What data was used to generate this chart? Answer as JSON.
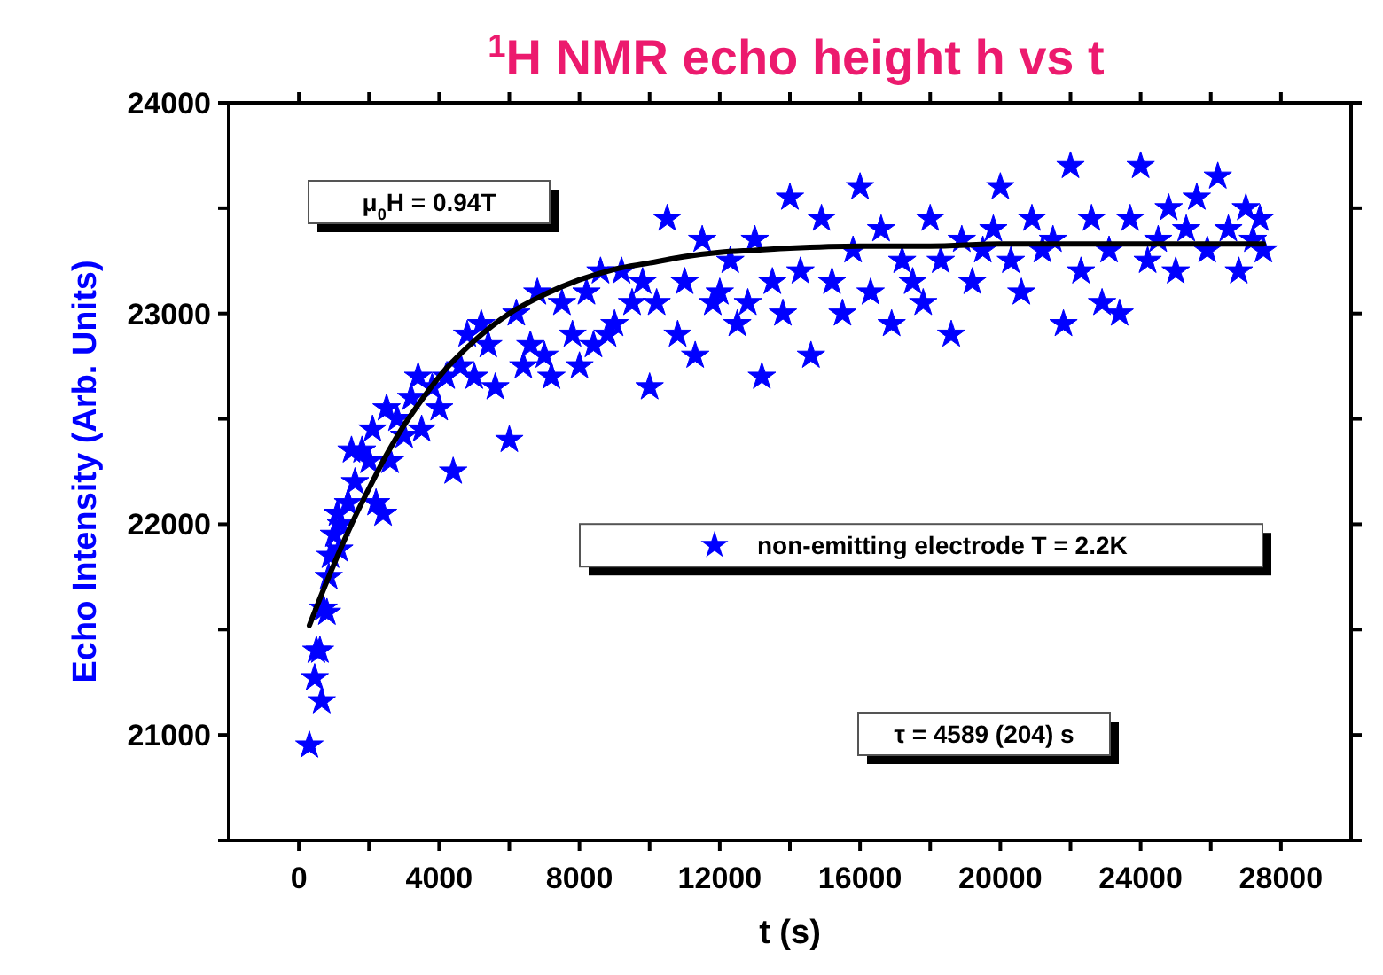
{
  "chart_data": {
    "type": "scatter",
    "title": "$^{1}$H NMR echo height h vs t",
    "xlabel": "t (s)",
    "ylabel": "Echo Intensity (Arb. Units)",
    "xlim": [
      -2000,
      30000
    ],
    "ylim": [
      20500,
      24000
    ],
    "xticks": [
      0,
      {
        "value": 2000,
        "label": null
      },
      4000,
      {
        "value": 6000,
        "label": null
      },
      8000,
      {
        "value": 10000,
        "label": null
      },
      12000,
      {
        "value": 14000,
        "label": null
      },
      16000,
      {
        "value": 18000,
        "label": null
      },
      20000,
      {
        "value": 22000,
        "label": null
      },
      24000,
      {
        "value": 26000,
        "label": null
      },
      28000
    ],
    "yticks": [
      {
        "value": 20500,
        "label": null
      },
      21000,
      {
        "value": 21500,
        "label": null
      },
      22000,
      {
        "value": 22500,
        "label": null
      },
      23000,
      {
        "value": 23500,
        "label": null
      },
      24000
    ],
    "grid": false,
    "legend": "right",
    "annotations": [
      "μ$_{0}$H = 0.94T",
      "τ = 4589 (204) s"
    ],
    "series": [
      {
        "name": "non-emitting electrode T = 2.2K",
        "color": "#0000ff",
        "marker": "star",
        "x": [
          300,
          450,
          500,
          600,
          650,
          700,
          800,
          850,
          900,
          1000,
          1100,
          1150,
          1200,
          1400,
          1500,
          1600,
          1800,
          2000,
          2100,
          2200,
          2400,
          2500,
          2600,
          2800,
          3000,
          3200,
          3400,
          3500,
          3800,
          4000,
          4200,
          4400,
          4600,
          4800,
          5000,
          5200,
          5400,
          5600,
          6000,
          6200,
          6400,
          6600,
          6800,
          7000,
          7200,
          7500,
          7800,
          8000,
          8200,
          8400,
          8600,
          8800,
          9000,
          9200,
          9500,
          9800,
          10000,
          10200,
          10500,
          10800,
          11000,
          11300,
          11500,
          11800,
          12000,
          12300,
          12500,
          12800,
          13000,
          13200,
          13500,
          13800,
          14000,
          14300,
          14600,
          14900,
          15200,
          15500,
          15800,
          16000,
          16300,
          16600,
          16900,
          17200,
          17500,
          17800,
          18000,
          18300,
          18600,
          18900,
          19200,
          19500,
          19800,
          20000,
          20300,
          20600,
          20900,
          21200,
          21500,
          21800,
          22000,
          22300,
          22600,
          22900,
          23100,
          23400,
          23700,
          24000,
          24200,
          24500,
          24800,
          25000,
          25300,
          25600,
          25900,
          26200,
          26500,
          26800,
          27000,
          27200,
          27400,
          27500
        ],
        "values": [
          20950,
          21270,
          21400,
          21400,
          21160,
          21600,
          21580,
          21750,
          21850,
          21950,
          22050,
          21880,
          22000,
          22100,
          22350,
          22200,
          22350,
          22300,
          22450,
          22100,
          22050,
          22550,
          22300,
          22500,
          22420,
          22600,
          22700,
          22450,
          22650,
          22550,
          22700,
          22250,
          22750,
          22900,
          22700,
          22950,
          22850,
          22650,
          22400,
          23000,
          22750,
          22850,
          23100,
          22800,
          22700,
          23050,
          22900,
          22750,
          23100,
          22850,
          23200,
          22900,
          22950,
          23200,
          23050,
          23150,
          22650,
          23050,
          23450,
          22900,
          23150,
          22800,
          23350,
          23050,
          23100,
          23250,
          22950,
          23050,
          23350,
          22700,
          23150,
          23000,
          23550,
          23200,
          22800,
          23450,
          23150,
          23000,
          23300,
          23600,
          23100,
          23400,
          22950,
          23250,
          23150,
          23050,
          23450,
          23250,
          22900,
          23350,
          23150,
          23300,
          23400,
          23600,
          23250,
          23100,
          23450,
          23300,
          23350,
          22950,
          23700,
          23200,
          23450,
          23050,
          23300,
          23000,
          23450,
          23700,
          23250,
          23350,
          23500,
          23200,
          23400,
          23550,
          23300,
          23650,
          23400,
          23200,
          23500,
          23350,
          23450,
          23300
        ]
      },
      {
        "type": "line",
        "color": "#000000",
        "marker": "none",
        "line_style": "solid",
        "x": [
          300,
          800,
          1500,
          2000,
          2500,
          3000,
          3500,
          4000,
          5000,
          6000,
          7000,
          8000,
          9000,
          10000,
          11000,
          12000,
          13000,
          14000,
          16000,
          18000,
          20000,
          22000,
          24000,
          26000,
          27500
        ],
        "values": [
          21520,
          21730,
          22000,
          22170,
          22330,
          22470,
          22590,
          22700,
          22870,
          23000,
          23090,
          23160,
          23210,
          23240,
          23270,
          23290,
          23300,
          23310,
          23320,
          23320,
          23330,
          23330,
          23330,
          23330,
          23330
        ]
      }
    ]
  }
}
